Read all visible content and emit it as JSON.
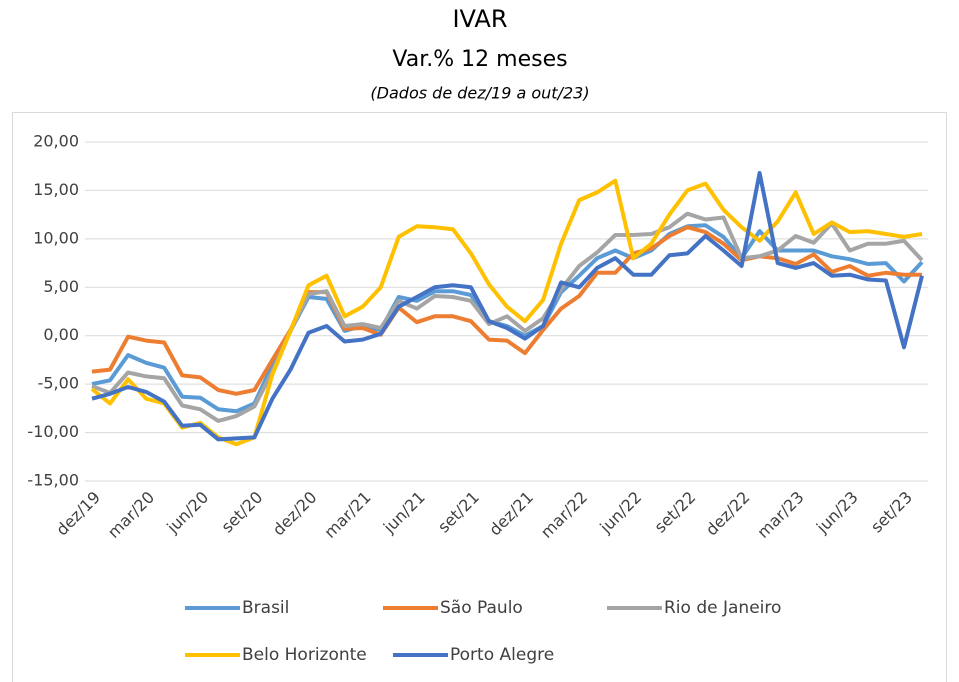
{
  "chart_data": {
    "type": "line",
    "title": "IVAR",
    "subtitle": "Var.% 12 meses",
    "note": "(Dados de dez/19 a out/23)",
    "categories": [
      "dez/19",
      null,
      null,
      "mar/20",
      null,
      null,
      "jun/20",
      null,
      null,
      "set/20",
      null,
      null,
      "dez/20",
      null,
      null,
      "mar/21",
      null,
      null,
      "jun/21",
      null,
      null,
      "set/21",
      null,
      null,
      "dez/21",
      null,
      null,
      "mar/22",
      null,
      null,
      "jun/22",
      null,
      null,
      "set/22",
      null,
      null,
      "dez/22",
      null,
      null,
      "mar/23",
      null,
      null,
      "jun/23",
      null,
      null,
      "set/23",
      null
    ],
    "series": [
      {
        "name": "Brasil",
        "color": "#5b9bd5",
        "values": [
          -5,
          -4.6,
          -2,
          -2.8,
          -3.3,
          -6.3,
          -6.4,
          -7.6,
          -7.8,
          -7,
          -3,
          0.5,
          4,
          3.8,
          0.5,
          1,
          0.6,
          4,
          3.6,
          4.6,
          4.6,
          4.2,
          1.5,
          1,
          0,
          1,
          4.5,
          6.2,
          8,
          8.8,
          8,
          8.8,
          10.5,
          11.3,
          11.4,
          10.2,
          8,
          10.8,
          8.8,
          8.8,
          8.8,
          8.2,
          7.9,
          7.4,
          7.5,
          5.6,
          7.6
        ]
      },
      {
        "name": "São Paulo",
        "color": "#ed7d31",
        "values": [
          -3.7,
          -3.5,
          -0.1,
          -0.5,
          -0.7,
          -4.1,
          -4.3,
          -5.6,
          -6,
          -5.6,
          -2.5,
          0.6,
          4.5,
          4.5,
          0.7,
          0.8,
          0.1,
          2.9,
          1.4,
          2,
          2,
          1.5,
          -0.4,
          -0.5,
          -1.8,
          0.6,
          2.8,
          4.1,
          6.5,
          6.5,
          8.5,
          9,
          10.3,
          11.2,
          10.7,
          9.5,
          7.8,
          8.2,
          8,
          7.4,
          8.4,
          6.6,
          7.2,
          6.2,
          6.5,
          6.3,
          6.3
        ]
      },
      {
        "name": "Rio de Janeiro",
        "color": "#a5a5a5",
        "values": [
          -5.2,
          -5.9,
          -3.8,
          -4.2,
          -4.4,
          -7.2,
          -7.6,
          -8.8,
          -8.3,
          -7.3,
          -3.7,
          0.5,
          4.3,
          4.6,
          1,
          1.2,
          0.8,
          3.6,
          2.8,
          4.1,
          4,
          3.6,
          1.2,
          2,
          0.5,
          1.8,
          4.8,
          7.2,
          8.6,
          10.4,
          10.4,
          10.5,
          11.2,
          12.6,
          12,
          12.2,
          8,
          8.2,
          8.8,
          10.3,
          9.6,
          11.6,
          8.8,
          9.5,
          9.5,
          9.8,
          7.8
        ]
      },
      {
        "name": "Belo Horizonte",
        "color": "#ffc000",
        "values": [
          -5.5,
          -7,
          -4.5,
          -6.5,
          -7,
          -9.5,
          -9,
          -10.5,
          -11.2,
          -10.5,
          -4,
          0.5,
          5.2,
          6.2,
          2,
          3,
          5,
          10.2,
          11.3,
          11.2,
          11,
          8.5,
          5.3,
          3,
          1.5,
          3.7,
          9.5,
          14,
          14.8,
          16,
          8,
          9.5,
          12.5,
          15,
          15.7,
          13,
          11.2,
          9.8,
          11.8,
          14.8,
          10.5,
          11.7,
          10.7,
          10.8,
          10.5,
          10.2,
          10.5
        ]
      },
      {
        "name": "Porto Alegre",
        "color": "#4472c4",
        "values": [
          -6.5,
          -6,
          -5.3,
          -5.8,
          -6.8,
          -9.3,
          -9.2,
          -10.7,
          -10.6,
          -10.5,
          -6.5,
          -3.5,
          0.3,
          1,
          -0.6,
          -0.4,
          0.2,
          3,
          4,
          5,
          5.2,
          5,
          1.5,
          0.8,
          -0.3,
          1,
          5.5,
          5,
          7,
          8,
          6.3,
          6.3,
          8.3,
          8.5,
          10.3,
          8.8,
          7.2,
          16.8,
          7.5,
          7,
          7.5,
          6.2,
          6.3,
          5.8,
          5.7,
          -1.2,
          6.2
        ]
      }
    ],
    "ylim": [
      -15,
      20
    ],
    "yticks": [
      {
        "value": -15,
        "label": "-15,00"
      },
      {
        "value": -10,
        "label": "-10,00"
      },
      {
        "value": -5,
        "label": "-5,00"
      },
      {
        "value": 0,
        "label": "0,00"
      },
      {
        "value": 5,
        "label": "5,00"
      },
      {
        "value": 10,
        "label": "10,00"
      },
      {
        "value": 15,
        "label": "15,00"
      },
      {
        "value": 20,
        "label": "20,00"
      }
    ],
    "grid": true,
    "legend": "bottom"
  }
}
